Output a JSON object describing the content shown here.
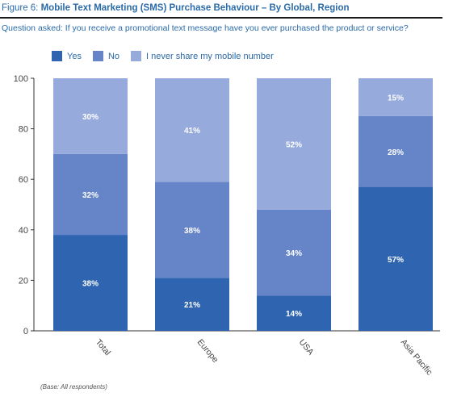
{
  "figure_label": "Figure 6:",
  "title": "Mobile Text Marketing (SMS) Purchase Behaviour – By Global, Region",
  "question": "Question asked: If you receive a promotional text message have you ever purchased the product or service?",
  "base_note": "(Base: All respondents)",
  "chart_data": {
    "type": "bar",
    "stacked": true,
    "categories": [
      "Total",
      "Europe",
      "USA",
      "Asia Pacific"
    ],
    "series": [
      {
        "name": "Yes",
        "values": [
          38,
          21,
          14,
          57
        ],
        "labels": [
          "38%",
          "21%",
          "14%",
          "57%"
        ],
        "color": "#2f64b0"
      },
      {
        "name": "No",
        "values": [
          32,
          38,
          34,
          28
        ],
        "labels": [
          "32%",
          "38%",
          "34%",
          "28%"
        ],
        "color": "#6585c8"
      },
      {
        "name": "I never share my mobile number",
        "values": [
          30,
          41,
          52,
          15
        ],
        "labels": [
          "30%",
          "41%",
          "52%",
          "15%"
        ],
        "color": "#96aadb"
      }
    ],
    "ylim": [
      0,
      100
    ],
    "yticks": [
      0,
      20,
      40,
      60,
      80,
      100
    ],
    "yticklabels": [
      "0",
      "20",
      "40",
      "60",
      "80",
      "100"
    ],
    "legend_position": "top-left",
    "grid": false
  }
}
